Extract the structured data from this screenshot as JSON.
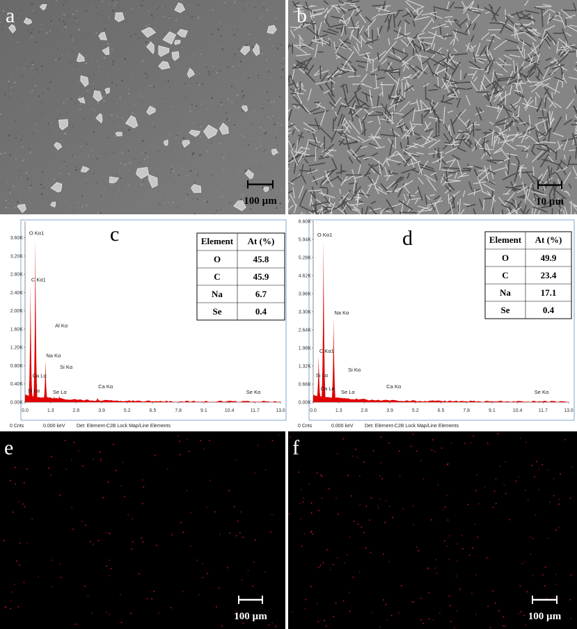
{
  "chart_data": [
    {
      "type": "spectrum",
      "title": "c",
      "color": "#e00000",
      "xlim": [
        0,
        13
      ],
      "xticks": [
        {
          "value": 0,
          "label": "0.0"
        },
        1.3,
        2.6,
        3.9,
        5.2,
        6.5,
        7.8,
        9.1,
        10.4,
        11.7,
        {
          "value": 13,
          "label": "13.0"
        }
      ],
      "ylim": [
        0,
        3960
      ],
      "yticks": [
        {
          "value": 0,
          "label": "0.00K"
        },
        {
          "value": 400,
          "label": "0.40K"
        },
        {
          "value": 800,
          "label": "0.80K"
        },
        {
          "value": 1200,
          "label": "1.20K"
        },
        {
          "value": 1600,
          "label": "1.60K"
        },
        {
          "value": 2000,
          "label": "2.00K"
        },
        {
          "value": 2400,
          "label": "2.40K"
        },
        {
          "value": 2800,
          "label": "2.80K"
        },
        {
          "value": 3200,
          "label": "3.20K"
        },
        {
          "value": 3600,
          "label": "3.60K"
        }
      ],
      "categories": [
        "O Kα1",
        "C Kα1",
        "Na Kα",
        "Al Kα",
        "Si Kα",
        "Ca Lα",
        "Se Lα",
        "Si Lα",
        "Ca Kα",
        "Se Kα"
      ],
      "x": [
        0.525,
        0.277,
        1.04,
        1.49,
        1.74,
        0.34,
        1.38,
        0.1,
        3.69,
        11.22
      ],
      "values": [
        3600,
        2580,
        920,
        130,
        140,
        300,
        80,
        150,
        90,
        10
      ],
      "footer": [
        "0 Cnts",
        "0.000 keV",
        "Det: Element-C2B Lock Map/Line Elements"
      ],
      "table": {
        "header": [
          "Element",
          "At (%)"
        ],
        "rows": [
          [
            "O",
            "45.8"
          ],
          [
            "C",
            "45.9"
          ],
          [
            "Na",
            "6.7"
          ],
          [
            "Se",
            "0.4"
          ]
        ]
      }
    },
    {
      "type": "spectrum",
      "title": "d",
      "color": "#e00000",
      "xlim": [
        0,
        13
      ],
      "xticks": [
        {
          "value": 0,
          "label": "0.0"
        },
        1.3,
        2.6,
        3.9,
        5.2,
        6.5,
        7.8,
        9.1,
        10.4,
        11.7,
        {
          "value": 13,
          "label": "13.0"
        }
      ],
      "ylim": [
        0,
        6600
      ],
      "yticks": [
        {
          "value": 0,
          "label": "0.00K"
        },
        {
          "value": 660,
          "label": "0.66K"
        },
        {
          "value": 1320,
          "label": "1.32K"
        },
        {
          "value": 1980,
          "label": "1.98K"
        },
        {
          "value": 2640,
          "label": "2.64K"
        },
        {
          "value": 3300,
          "label": "3.30K"
        },
        {
          "value": 3960,
          "label": "3.96K"
        },
        {
          "value": 4620,
          "label": "4.62K"
        },
        {
          "value": 5280,
          "label": "5.28K"
        },
        {
          "value": 5940,
          "label": "5.94K"
        },
        {
          "value": 6600,
          "label": "6.60K"
        }
      ],
      "categories": [
        "O Kα1",
        "C Kα1",
        "Na Kα",
        "Si Lα",
        "Ca Lα",
        "Si Kα",
        "Se Lα",
        "Ca Kα",
        "Se Kα"
      ],
      "x": [
        0.525,
        0.277,
        1.04,
        0.1,
        0.34,
        1.74,
        1.38,
        3.69,
        11.22
      ],
      "values": [
        5940,
        1700,
        3100,
        250,
        330,
        120,
        100,
        100,
        10
      ],
      "footer": [
        "0 Cnts",
        "0.000 keV",
        "Det: Element-C2B Lock Map/Line Elements"
      ],
      "table": {
        "header": [
          "Element",
          "At (%)"
        ],
        "rows": [
          [
            "O",
            "49.9"
          ],
          [
            "C",
            "23.4"
          ],
          [
            "Na",
            "17.1"
          ],
          [
            "Se",
            "0.4"
          ]
        ]
      }
    }
  ],
  "images": [
    {
      "letter": "a",
      "scale_bar": "100 µm"
    },
    {
      "letter": "b",
      "scale_bar": "10 µm"
    },
    {
      "letter": "e",
      "scale_bar": "100 µm"
    },
    {
      "letter": "f",
      "scale_bar": "100 µm"
    }
  ]
}
